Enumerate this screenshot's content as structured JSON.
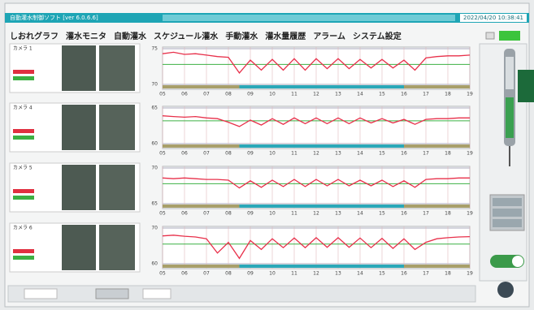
{
  "app_title": "自動灌水制御ソフト [ver 6.0.6.6]",
  "datetime": "2022/04/20 10:38:41",
  "tabs": [
    "しおれグラフ",
    "灌水モニタ",
    "自動灌水",
    "スケジュール灌水",
    "手動灌水",
    "灌水量履歴",
    "アラーム",
    "システム設定"
  ],
  "chart_data": [
    {
      "type": "line",
      "camera_label": "カメラ 1",
      "ylim": [
        70,
        75
      ],
      "yticks": [
        70,
        75
      ],
      "xlim": [
        5,
        19
      ],
      "xticks": [
        {
          "value": 5,
          "label": "05"
        },
        {
          "value": 6,
          "label": "06"
        },
        {
          "value": 7,
          "label": "07"
        },
        {
          "value": 8,
          "label": "08"
        },
        {
          "value": 9,
          "label": "09"
        },
        10,
        11,
        12,
        13,
        14,
        15,
        16,
        17,
        18,
        19
      ],
      "x": [
        5,
        5.5,
        6,
        6.5,
        7,
        7.5,
        8,
        8.5,
        9,
        9.5,
        10,
        10.5,
        11,
        11.5,
        12,
        12.5,
        13,
        13.5,
        14,
        14.5,
        15,
        15.5,
        16,
        16.5,
        17,
        17.5,
        18,
        18.5,
        19
      ],
      "series": [
        {
          "color": "#e8304a",
          "values": [
            74.3,
            74.5,
            74.2,
            74.3,
            74.1,
            73.9,
            73.8,
            71.6,
            73.4,
            72.0,
            73.5,
            72.0,
            73.6,
            72.0,
            73.6,
            72.2,
            73.6,
            72.2,
            73.5,
            72.3,
            73.5,
            72.3,
            73.4,
            72.0,
            73.7,
            73.9,
            74.0,
            74.0,
            74.1
          ]
        }
      ],
      "reference_line": {
        "value": 72.8,
        "color": "#3cb043"
      },
      "bands": [
        {
          "start": 5,
          "end": 8.5,
          "color": "#a89f6a"
        },
        {
          "start": 8.5,
          "end": 16,
          "color": "#2aa8b8"
        },
        {
          "start": 16,
          "end": 19,
          "color": "#a89f6a"
        }
      ]
    },
    {
      "type": "line",
      "camera_label": "カメラ 4",
      "ylim": [
        60,
        65
      ],
      "yticks": [
        60,
        65
      ],
      "xlim": [
        5,
        19
      ],
      "xticks": [
        {
          "value": 5,
          "label": "05"
        },
        {
          "value": 6,
          "label": "06"
        },
        {
          "value": 7,
          "label": "07"
        },
        {
          "value": 8,
          "label": "08"
        },
        {
          "value": 9,
          "label": "09"
        },
        10,
        11,
        12,
        13,
        14,
        15,
        16,
        17,
        18,
        19
      ],
      "x": [
        5,
        5.5,
        6,
        6.5,
        7,
        7.5,
        8,
        8.5,
        9,
        9.5,
        10,
        10.5,
        11,
        11.5,
        12,
        12.5,
        13,
        13.5,
        14,
        14.5,
        15,
        15.5,
        16,
        16.5,
        17,
        17.5,
        18,
        18.5,
        19
      ],
      "series": [
        {
          "color": "#e8304a",
          "values": [
            63.9,
            63.8,
            63.7,
            63.8,
            63.6,
            63.5,
            63.0,
            62.4,
            63.3,
            62.6,
            63.5,
            62.7,
            63.6,
            62.8,
            63.6,
            62.8,
            63.6,
            62.8,
            63.6,
            62.9,
            63.5,
            62.9,
            63.4,
            62.7,
            63.4,
            63.5,
            63.5,
            63.6,
            63.6
          ]
        }
      ],
      "reference_line": {
        "value": 63.2,
        "color": "#3cb043"
      },
      "bands": [
        {
          "start": 5,
          "end": 8.5,
          "color": "#a89f6a"
        },
        {
          "start": 8.5,
          "end": 16,
          "color": "#2aa8b8"
        },
        {
          "start": 16,
          "end": 19,
          "color": "#a89f6a"
        }
      ]
    },
    {
      "type": "line",
      "camera_label": "カメラ 5",
      "ylim": [
        65,
        70
      ],
      "yticks": [
        65,
        70
      ],
      "xlim": [
        5,
        19
      ],
      "xticks": [
        {
          "value": 5,
          "label": "05"
        },
        {
          "value": 6,
          "label": "06"
        },
        {
          "value": 7,
          "label": "07"
        },
        {
          "value": 8,
          "label": "08"
        },
        {
          "value": 9,
          "label": "09"
        },
        10,
        11,
        12,
        13,
        14,
        15,
        16,
        17,
        18,
        19
      ],
      "x": [
        5,
        5.5,
        6,
        6.5,
        7,
        7.5,
        8,
        8.5,
        9,
        9.5,
        10,
        10.5,
        11,
        11.5,
        12,
        12.5,
        13,
        13.5,
        14,
        14.5,
        15,
        15.5,
        16,
        16.5,
        17,
        17.5,
        18,
        18.5,
        19
      ],
      "series": [
        {
          "color": "#e8304a",
          "values": [
            68.6,
            68.5,
            68.6,
            68.5,
            68.4,
            68.4,
            68.3,
            67.2,
            68.2,
            67.3,
            68.3,
            67.4,
            68.4,
            67.4,
            68.4,
            67.5,
            68.4,
            67.5,
            68.3,
            67.5,
            68.3,
            67.4,
            68.2,
            67.3,
            68.4,
            68.5,
            68.5,
            68.6,
            68.6
          ]
        }
      ],
      "reference_line": {
        "value": 67.8,
        "color": "#3cb043"
      },
      "bands": [
        {
          "start": 5,
          "end": 8.5,
          "color": "#a89f6a"
        },
        {
          "start": 8.5,
          "end": 16,
          "color": "#2aa8b8"
        },
        {
          "start": 16,
          "end": 19,
          "color": "#a89f6a"
        }
      ]
    },
    {
      "type": "line",
      "camera_label": "カメラ 6",
      "ylim": [
        60,
        70
      ],
      "yticks": [
        60,
        70
      ],
      "xlim": [
        5,
        19
      ],
      "xticks": [
        {
          "value": 5,
          "label": "05"
        },
        {
          "value": 6,
          "label": "06"
        },
        {
          "value": 7,
          "label": "07"
        },
        {
          "value": 8,
          "label": "08"
        },
        {
          "value": 9,
          "label": "09"
        },
        10,
        11,
        12,
        13,
        14,
        15,
        16,
        17,
        18,
        19
      ],
      "x": [
        5,
        5.5,
        6,
        6.5,
        7,
        7.5,
        8,
        8.5,
        9,
        9.5,
        10,
        10.5,
        11,
        11.5,
        12,
        12.5,
        13,
        13.5,
        14,
        14.5,
        15,
        15.5,
        16,
        16.5,
        17,
        17.5,
        18,
        18.5,
        19
      ],
      "series": [
        {
          "color": "#e8304a",
          "values": [
            67.8,
            68.0,
            67.7,
            67.5,
            67.0,
            63.0,
            66.0,
            61.5,
            66.5,
            64.0,
            67.0,
            64.5,
            67.2,
            64.5,
            67.3,
            64.6,
            67.3,
            64.6,
            67.2,
            64.5,
            67.1,
            64.3,
            67.0,
            64.0,
            66.0,
            67.0,
            67.3,
            67.5,
            67.6
          ]
        }
      ],
      "reference_line": {
        "value": 65.5,
        "color": "#3cb043"
      },
      "bands": [
        {
          "start": 5,
          "end": 8.5,
          "color": "#a89f6a"
        },
        {
          "start": 8.5,
          "end": 16,
          "color": "#2aa8b8"
        },
        {
          "start": 16,
          "end": 19,
          "color": "#a89f6a"
        }
      ]
    }
  ]
}
